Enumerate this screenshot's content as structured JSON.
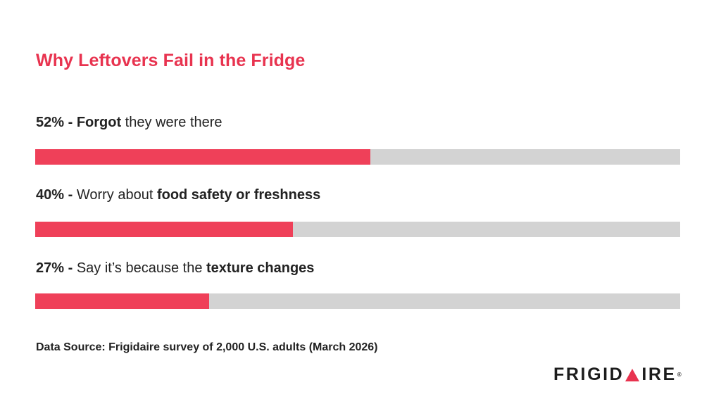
{
  "chart_data": {
    "type": "bar",
    "title": "Why Leftovers Fail in the Fridge",
    "orientation": "horizontal",
    "xlim": [
      0,
      100
    ],
    "unit": "%",
    "categories": [
      {
        "pct": "52%",
        "sep": " - ",
        "parts": [
          {
            "text": "Forgot",
            "bold": true
          },
          {
            "text": " they were there",
            "bold": false
          }
        ]
      },
      {
        "pct": "40%",
        "sep": " - ",
        "parts": [
          {
            "text": "Worry about ",
            "bold": false
          },
          {
            "text": "food safety or freshness",
            "bold": true
          }
        ]
      },
      {
        "pct": "27%",
        "sep": " - ",
        "parts": [
          {
            "text": "Say it’s because the ",
            "bold": false
          },
          {
            "text": "texture changes",
            "bold": true
          }
        ]
      }
    ],
    "values": [
      52,
      40,
      27
    ],
    "colors": {
      "fill": "#ef4059",
      "track": "#d3d3d3",
      "title": "#e8334f"
    }
  },
  "footer": {
    "source": "Data Source: Frigidaire survey of 2,000 U.S. adults (March 2026)",
    "logo": {
      "before": "FRIGID",
      "after": "IRE",
      "reg": "®",
      "mark_color": "#e8334f"
    }
  }
}
